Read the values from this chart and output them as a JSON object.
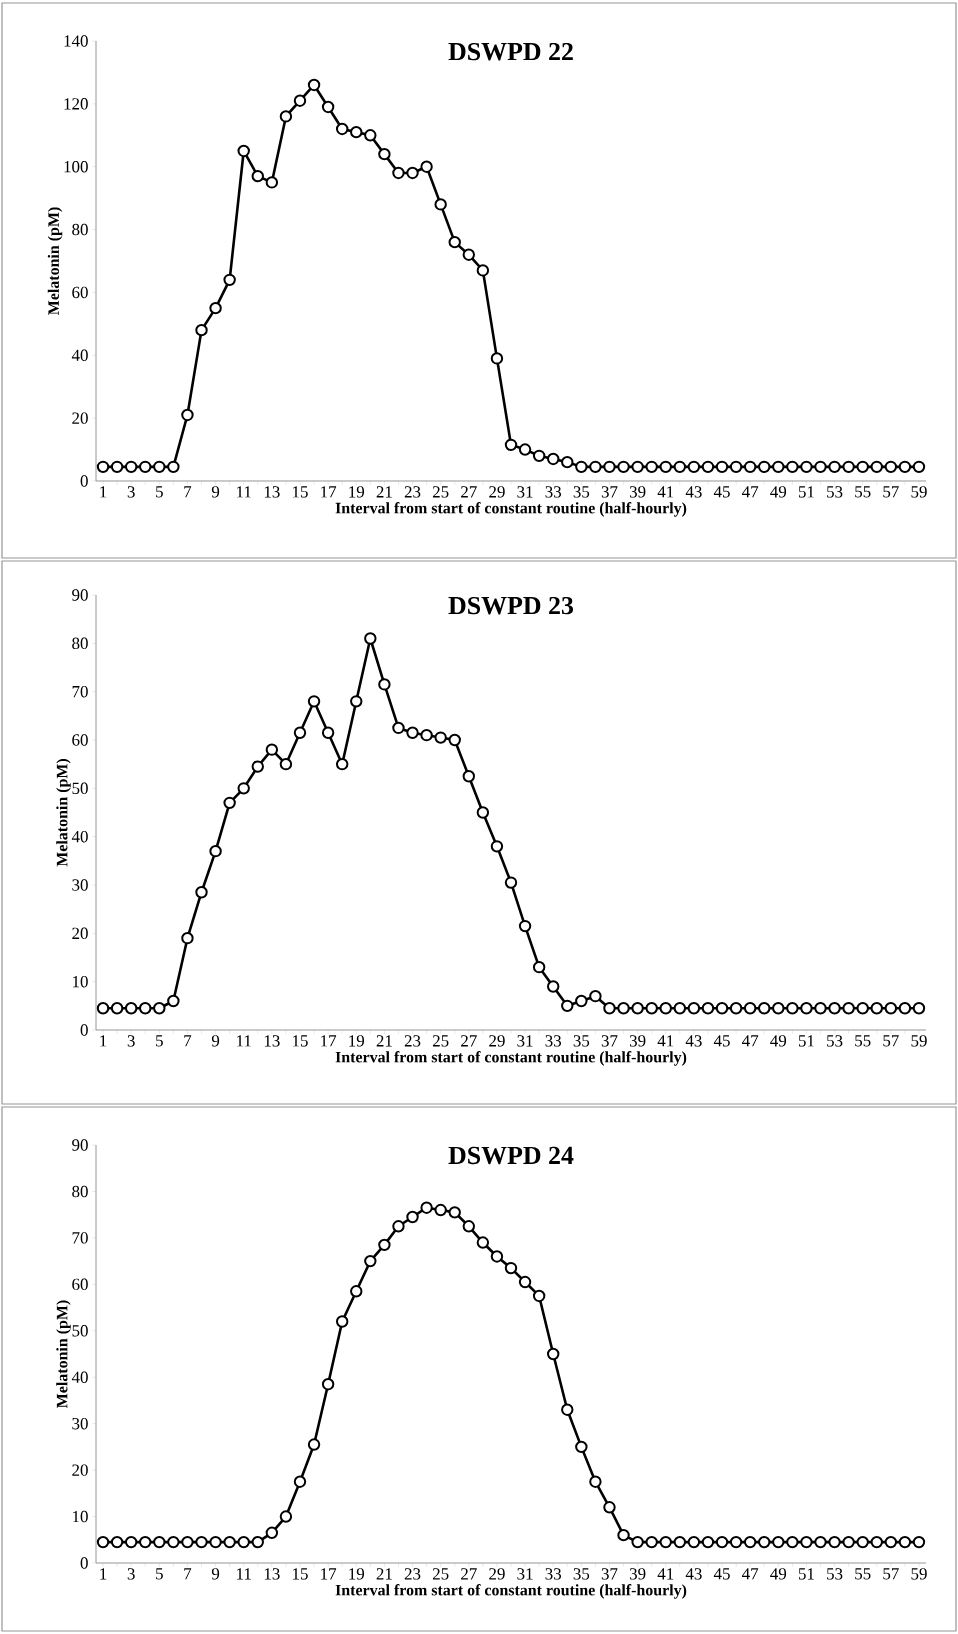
{
  "chart_data": [
    {
      "type": "line",
      "title": "DSWPD 22",
      "xlabel": "Interval from start of constant routine (half-hourly)",
      "ylabel": "Melatonin (pM)",
      "categories": [
        "1",
        null,
        "3",
        null,
        "5",
        null,
        "7",
        null,
        "9",
        null,
        "11",
        null,
        "13",
        null,
        "15",
        null,
        "17",
        null,
        "19",
        null,
        "21",
        null,
        "23",
        null,
        "25",
        null,
        "27",
        null,
        "29",
        null,
        "31",
        null,
        "33",
        null,
        "35",
        null,
        "37",
        null,
        "39",
        null,
        "41",
        null,
        "43",
        null,
        "45",
        null,
        "47",
        null,
        "49",
        null,
        "51",
        null,
        "53",
        null,
        "55",
        null,
        "57",
        null,
        "59"
      ],
      "values": [
        4.5,
        4.5,
        4.5,
        4.5,
        4.5,
        4.5,
        21,
        48,
        55,
        64,
        105,
        97,
        95,
        116,
        121,
        126,
        119,
        112,
        111,
        110,
        104,
        98,
        98,
        100,
        88,
        76,
        72,
        67,
        39,
        11.5,
        10,
        8,
        7,
        6,
        4.5,
        4.5,
        4.5,
        4.5,
        4.5,
        4.5,
        4.5,
        4.5,
        4.5,
        4.5,
        4.5,
        4.5,
        4.5,
        4.5,
        4.5,
        4.5,
        4.5,
        4.5,
        4.5,
        4.5,
        4.5,
        4.5,
        4.5,
        4.5,
        4.5
      ],
      "color": "#000000",
      "marker": "circle",
      "line_style": "solid",
      "ylim": [
        0,
        140
      ],
      "yticks": [
        0,
        20,
        40,
        60,
        80,
        100,
        120,
        140
      ]
    },
    {
      "type": "line",
      "title": "DSWPD 23",
      "xlabel": "Interval from start of constant routine (half-hourly)",
      "ylabel": "Melatonin (pM)",
      "categories": [
        "1",
        null,
        "3",
        null,
        "5",
        null,
        "7",
        null,
        "9",
        null,
        "11",
        null,
        "13",
        null,
        "15",
        null,
        "17",
        null,
        "19",
        null,
        "21",
        null,
        "23",
        null,
        "25",
        null,
        "27",
        null,
        "29",
        null,
        "31",
        null,
        "33",
        null,
        "35",
        null,
        "37",
        null,
        "39",
        null,
        "41",
        null,
        "43",
        null,
        "45",
        null,
        "47",
        null,
        "49",
        null,
        "51",
        null,
        "53",
        null,
        "55",
        null,
        "57",
        null,
        "59"
      ],
      "values": [
        4.5,
        4.5,
        4.5,
        4.5,
        4.5,
        6,
        19,
        28.5,
        37,
        47,
        50,
        54.5,
        58,
        55,
        61.5,
        68,
        61.5,
        55,
        68,
        81,
        71.5,
        62.5,
        61.5,
        61,
        60.5,
        60,
        52.5,
        45,
        38,
        30.5,
        21.5,
        13,
        9,
        5,
        6,
        7,
        4.5,
        4.5,
        4.5,
        4.5,
        4.5,
        4.5,
        4.5,
        4.5,
        4.5,
        4.5,
        4.5,
        4.5,
        4.5,
        4.5,
        4.5,
        4.5,
        4.5,
        4.5,
        4.5,
        4.5,
        4.5,
        4.5,
        4.5
      ],
      "color": "#000000",
      "marker": "circle",
      "line_style": "solid",
      "ylim": [
        0,
        90
      ],
      "yticks": [
        0,
        10,
        20,
        30,
        40,
        50,
        60,
        70,
        80,
        90
      ]
    },
    {
      "type": "line",
      "title": "DSWPD 24",
      "xlabel": "Interval from start of constant routine (half-hourly)",
      "ylabel": "Melatonin (pM)",
      "categories": [
        "1",
        null,
        "3",
        null,
        "5",
        null,
        "7",
        null,
        "9",
        null,
        "11",
        null,
        "13",
        null,
        "15",
        null,
        "17",
        null,
        "19",
        null,
        "21",
        null,
        "23",
        null,
        "25",
        null,
        "27",
        null,
        "29",
        null,
        "31",
        null,
        "33",
        null,
        "35",
        null,
        "37",
        null,
        "39",
        null,
        "41",
        null,
        "43",
        null,
        "45",
        null,
        "47",
        null,
        "49",
        null,
        "51",
        null,
        "53",
        null,
        "55",
        null,
        "57",
        null,
        "59"
      ],
      "values": [
        4.5,
        4.5,
        4.5,
        4.5,
        4.5,
        4.5,
        4.5,
        4.5,
        4.5,
        4.5,
        4.5,
        4.5,
        6.5,
        10,
        17.5,
        25.5,
        38.5,
        52,
        58.5,
        65,
        68.5,
        72.5,
        74.5,
        76.5,
        76,
        75.5,
        72.5,
        69,
        66,
        63.5,
        60.5,
        57.5,
        45,
        33,
        25,
        17.5,
        12,
        6,
        4.5,
        4.5,
        4.5,
        4.5,
        4.5,
        4.5,
        4.5,
        4.5,
        4.5,
        4.5,
        4.5,
        4.5,
        4.5,
        4.5,
        4.5,
        4.5,
        4.5,
        4.5,
        4.5,
        4.5,
        4.5
      ],
      "color": "#000000",
      "marker": "circle",
      "line_style": "solid",
      "ylim": [
        0,
        90
      ],
      "yticks": [
        0,
        10,
        20,
        30,
        40,
        50,
        60,
        70,
        80,
        90
      ]
    }
  ]
}
